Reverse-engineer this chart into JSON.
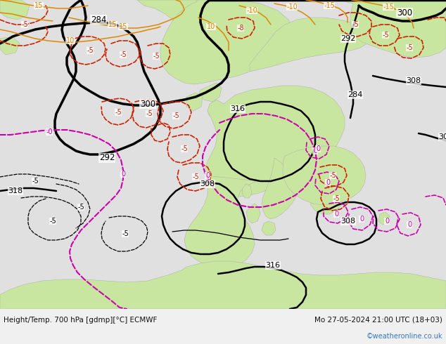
{
  "title_left": "Height/Temp. 700 hPa [gdmp][°C] ECMWF",
  "title_right": "Mo 27-05-2024 21:00 UTC (18+03)",
  "watermark": "©weatheronline.co.uk",
  "bg_color": "#d8d8d8",
  "land_color": "#c8e6a0",
  "sea_color": "#e0e0e0",
  "map_bg": "#e8e8e8",
  "footer_bg": "#f0f0f0",
  "footer_text_color": "#111111",
  "watermark_color": "#3377bb",
  "figsize": [
    6.34,
    4.9
  ],
  "dpi": 100,
  "BLACK": "#000000",
  "RED": "#cc2200",
  "MAG": "#cc00aa",
  "ORG": "#dd8800",
  "GRAY": "#555555",
  "footer_fontsize": 7.5,
  "watermark_fontsize": 7,
  "label_fontsize": 7.5
}
